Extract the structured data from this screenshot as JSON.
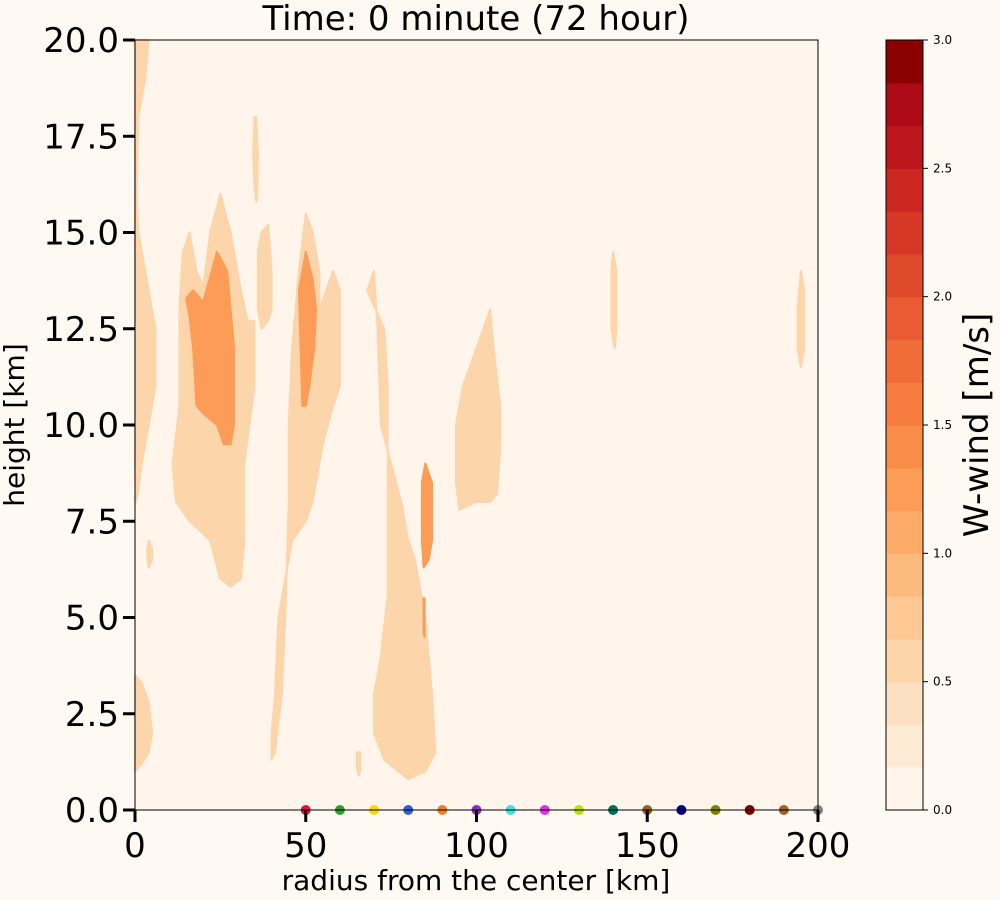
{
  "chart_data": {
    "type": "heatmap",
    "title": "Time: 0 minute (72 hour)",
    "xlabel": "radius from the center [km]",
    "ylabel": "height [km]",
    "xlim": [
      0,
      200
    ],
    "ylim": [
      0,
      20
    ],
    "xticks": [
      "0",
      "50",
      "100",
      "150",
      "200"
    ],
    "yticks": [
      "0.0",
      "2.5",
      "5.0",
      "7.5",
      "10.0",
      "12.5",
      "15.0",
      "17.5",
      "20.0"
    ],
    "grid": false,
    "colorbar": {
      "label": "W-wind [m/s]",
      "range": [
        0,
        3
      ],
      "ticks": [
        "0.0",
        "0.5",
        "1.0",
        "1.5",
        "2.0",
        "2.5",
        "3.0"
      ],
      "colors": [
        "#fff5eb",
        "#fdebd6",
        "#fde0c3",
        "#fdd5ab",
        "#fdc893",
        "#fdba7d",
        "#fdab68",
        "#fc9c56",
        "#f98c48",
        "#f57c3e",
        "#f06c38",
        "#e95c33",
        "#e04a2c",
        "#d63726",
        "#c92720",
        "#bc151b",
        "#ad0a17",
        "#8b0000"
      ]
    },
    "markers": {
      "radius_km": [
        50,
        60,
        70,
        80,
        90,
        100,
        110,
        120,
        130,
        140,
        150,
        160,
        170,
        180,
        190,
        200
      ],
      "height_km": 0,
      "colors": [
        "#dc143c",
        "#2ca02c",
        "#ffd700",
        "#3060d0",
        "#e8822a",
        "#8b2db8",
        "#40e0e0",
        "#e030e0",
        "#b8e010",
        "#007060",
        "#9a6020",
        "#000080",
        "#808000",
        "#800000",
        "#a0602a",
        "#808080"
      ]
    },
    "regions": [
      {
        "level": 0.25,
        "points": [
          [
            0,
            20
          ],
          [
            4,
            20
          ],
          [
            3,
            19
          ],
          [
            1,
            18
          ],
          [
            0.5,
            16
          ],
          [
            1,
            15
          ],
          [
            3,
            14
          ],
          [
            6,
            12.5
          ],
          [
            6,
            11
          ],
          [
            4,
            10
          ],
          [
            2,
            9
          ],
          [
            1,
            8.3
          ],
          [
            0.3,
            8
          ],
          [
            0,
            9
          ]
        ]
      },
      {
        "level": 0.25,
        "points": [
          [
            13,
            13
          ],
          [
            14,
            14.5
          ],
          [
            16,
            15
          ],
          [
            18,
            14
          ],
          [
            20,
            13.6
          ],
          [
            22,
            15
          ],
          [
            25,
            16
          ],
          [
            28,
            15
          ],
          [
            31,
            13.5
          ],
          [
            33,
            12.7
          ],
          [
            35,
            12.7
          ],
          [
            35,
            11
          ],
          [
            32,
            9
          ],
          [
            32,
            7
          ],
          [
            31,
            6
          ],
          [
            28,
            5.8
          ],
          [
            25,
            6
          ],
          [
            22,
            7
          ],
          [
            16,
            7.5
          ],
          [
            12,
            8
          ],
          [
            11,
            9
          ],
          [
            13,
            10.5
          ],
          [
            13,
            12
          ]
        ]
      },
      {
        "level": 0.25,
        "points": [
          [
            48,
            14
          ],
          [
            50,
            15.5
          ],
          [
            52,
            15
          ],
          [
            54,
            14
          ],
          [
            54,
            13
          ],
          [
            56,
            13.5
          ],
          [
            58,
            14
          ],
          [
            60,
            13.5
          ],
          [
            60,
            11
          ],
          [
            58,
            10.5
          ],
          [
            55,
            9.5
          ],
          [
            52,
            8
          ],
          [
            50,
            7.5
          ],
          [
            46,
            7
          ],
          [
            42,
            5
          ],
          [
            41,
            3
          ],
          [
            40,
            2
          ],
          [
            40,
            1.3
          ],
          [
            41,
            1.5
          ],
          [
            43,
            3
          ],
          [
            44,
            5
          ],
          [
            45,
            8
          ],
          [
            45,
            10
          ],
          [
            46,
            12
          ]
        ]
      },
      {
        "level": 0.25,
        "points": [
          [
            68,
            13.5
          ],
          [
            70,
            14
          ],
          [
            71,
            12.5
          ],
          [
            72,
            10
          ],
          [
            75,
            9
          ],
          [
            78,
            8
          ],
          [
            80,
            7
          ],
          [
            82,
            6.5
          ],
          [
            85,
            5
          ],
          [
            87,
            3
          ],
          [
            88,
            1.5
          ],
          [
            85,
            1
          ],
          [
            80,
            0.8
          ],
          [
            73,
            1.3
          ],
          [
            70,
            2
          ],
          [
            70,
            3
          ],
          [
            72,
            4
          ],
          [
            73,
            4.8
          ],
          [
            74,
            5.6
          ],
          [
            74,
            7
          ],
          [
            74,
            9
          ],
          [
            74,
            11
          ],
          [
            73,
            12.5
          ]
        ]
      },
      {
        "level": 0.25,
        "points": [
          [
            94,
            10
          ],
          [
            96,
            11
          ],
          [
            100,
            12
          ],
          [
            104,
            13
          ],
          [
            105,
            12
          ],
          [
            107,
            10.5
          ],
          [
            107,
            9.5
          ],
          [
            106,
            8.2
          ],
          [
            104,
            8
          ],
          [
            100,
            8
          ],
          [
            95,
            7.8
          ],
          [
            94,
            8.5
          ]
        ]
      },
      {
        "level": 0.25,
        "points": [
          [
            37,
            15
          ],
          [
            39,
            15.2
          ],
          [
            40,
            14
          ],
          [
            40,
            13
          ],
          [
            39,
            12.7
          ],
          [
            37,
            12.5
          ],
          [
            36,
            13
          ],
          [
            36,
            14.5
          ]
        ]
      },
      {
        "level": 0.25,
        "points": [
          [
            35,
            18
          ],
          [
            35.5,
            18
          ],
          [
            36,
            17
          ],
          [
            35.8,
            16
          ],
          [
            35.5,
            15.8
          ],
          [
            35,
            16.2
          ],
          [
            34.6,
            17
          ]
        ]
      },
      {
        "level": 0.25,
        "points": [
          [
            140,
            14.5
          ],
          [
            141,
            14
          ],
          [
            141,
            12.5
          ],
          [
            140.5,
            12
          ],
          [
            139.5,
            12.5
          ],
          [
            139.5,
            14
          ]
        ]
      },
      {
        "level": 0.25,
        "points": [
          [
            195,
            14
          ],
          [
            196,
            13.5
          ],
          [
            196,
            12
          ],
          [
            195,
            11.5
          ],
          [
            194,
            12
          ],
          [
            194,
            13
          ]
        ]
      },
      {
        "level": 0.25,
        "points": [
          [
            4,
            7
          ],
          [
            5,
            6.8
          ],
          [
            5,
            6.5
          ],
          [
            4,
            6.3
          ],
          [
            3.5,
            6.7
          ]
        ]
      },
      {
        "level": 0.25,
        "points": [
          [
            0,
            3.5
          ],
          [
            2,
            3.3
          ],
          [
            4,
            2.8
          ],
          [
            5,
            2
          ],
          [
            4,
            1.5
          ],
          [
            2,
            1.2
          ],
          [
            0,
            1
          ]
        ]
      },
      {
        "level": 0.25,
        "points": [
          [
            65,
            1.5
          ],
          [
            66,
            1.5
          ],
          [
            66,
            1
          ],
          [
            65.5,
            0.9
          ],
          [
            65,
            1.1
          ]
        ]
      },
      {
        "level": 0.5,
        "points": [
          [
            15,
            13.3
          ],
          [
            17,
            13.5
          ],
          [
            20,
            13.2
          ],
          [
            24,
            14.5
          ],
          [
            27,
            14
          ],
          [
            28,
            13
          ],
          [
            29,
            12
          ],
          [
            29,
            10
          ],
          [
            28,
            9.5
          ],
          [
            26,
            9.5
          ],
          [
            24,
            10
          ],
          [
            20,
            10.3
          ],
          [
            18,
            10.5
          ],
          [
            17,
            12
          ],
          [
            16,
            12.8
          ]
        ]
      },
      {
        "level": 0.5,
        "points": [
          [
            48,
            13.5
          ],
          [
            50,
            14.5
          ],
          [
            52,
            13.8
          ],
          [
            53,
            13
          ],
          [
            52.5,
            12
          ],
          [
            51,
            11
          ],
          [
            50,
            10.5
          ],
          [
            49,
            10.5
          ],
          [
            48.5,
            12
          ]
        ]
      },
      {
        "level": 0.5,
        "points": [
          [
            84,
            8.5
          ],
          [
            85,
            9
          ],
          [
            87,
            8.5
          ],
          [
            87,
            7
          ],
          [
            86,
            6.5
          ],
          [
            84.5,
            6.3
          ],
          [
            84,
            7
          ]
        ]
      },
      {
        "level": 0.5,
        "points": [
          [
            84.5,
            5.5
          ],
          [
            84.8,
            5.5
          ],
          [
            84.8,
            4.5
          ],
          [
            84.5,
            4.6
          ]
        ]
      }
    ]
  }
}
